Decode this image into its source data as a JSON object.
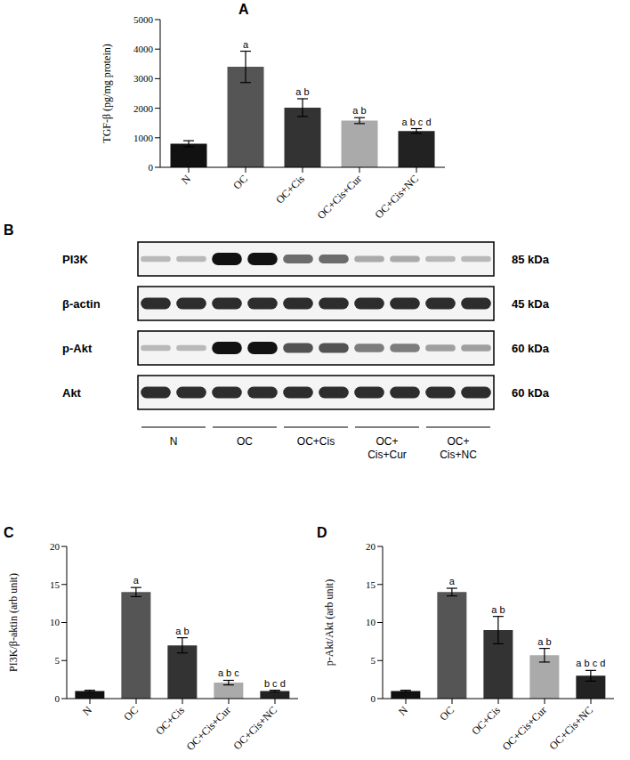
{
  "chart_data": [
    {
      "title": "A",
      "type": "bar",
      "categories": [
        "N",
        "OC",
        "OC+Cis",
        "OC+Cis+Cur",
        "OC+Cis+NC"
      ],
      "values": [
        800,
        3400,
        2020,
        1580,
        1230
      ],
      "error": [
        100,
        530,
        300,
        100,
        80
      ],
      "annotations": [
        null,
        "a",
        "a b",
        "a b",
        "a b c d"
      ],
      "colors": [
        "#111111",
        "#555555",
        "#333333",
        "#aaaaaa",
        "#222222"
      ],
      "y_label": "TGF-β (pg/mg protein)",
      "ylim": [
        0,
        5000
      ],
      "yticks": [
        0,
        1000,
        2000,
        3000,
        4000,
        5000
      ]
    },
    {
      "title": "C",
      "type": "bar",
      "categories": [
        "N",
        "OC",
        "OC+Cis",
        "OC+Cis+Cur",
        "OC+Cis+NC"
      ],
      "values": [
        1.0,
        14,
        7.0,
        2.1,
        1.0
      ],
      "error": [
        0.1,
        0.6,
        1.0,
        0.3,
        0.1
      ],
      "annotations": [
        null,
        "a",
        "a b",
        "a b c",
        "b c d"
      ],
      "colors": [
        "#111111",
        "#555555",
        "#333333",
        "#aaaaaa",
        "#222222"
      ],
      "y_label": "PI3K/β-aktin (arb unit)",
      "ylim": [
        0,
        20
      ],
      "yticks": [
        0,
        5,
        10,
        15,
        20
      ]
    },
    {
      "title": "D",
      "type": "bar",
      "categories": [
        "N",
        "OC",
        "OC+Cis",
        "OC+Cis+Cur",
        "OC+Cis+NC"
      ],
      "values": [
        1.0,
        14,
        9.0,
        5.7,
        3.0
      ],
      "error": [
        0.1,
        0.5,
        1.8,
        0.9,
        0.7
      ],
      "annotations": [
        null,
        "a",
        "a b",
        "a b",
        "a b c d"
      ],
      "colors": [
        "#111111",
        "#555555",
        "#333333",
        "#aaaaaa",
        "#222222"
      ],
      "y_label": "p-Akt/Akt (arb unit)",
      "ylim": [
        0,
        20
      ],
      "yticks": [
        0,
        5,
        10,
        15,
        20
      ]
    }
  ],
  "blot": {
    "title": "B",
    "rows": [
      {
        "label": "PI3K",
        "size": "85 kDa"
      },
      {
        "label": "β-actin",
        "size": "45 kDa"
      },
      {
        "label": "p-Akt",
        "size": "60 kDa"
      },
      {
        "label": "Akt",
        "size": "60 kDa"
      }
    ],
    "groups": [
      [
        "N"
      ],
      [
        "OC"
      ],
      [
        "OC+Cis"
      ],
      [
        "OC+",
        "Cis+Cur"
      ],
      [
        "OC+",
        "Cis+NC"
      ]
    ]
  }
}
